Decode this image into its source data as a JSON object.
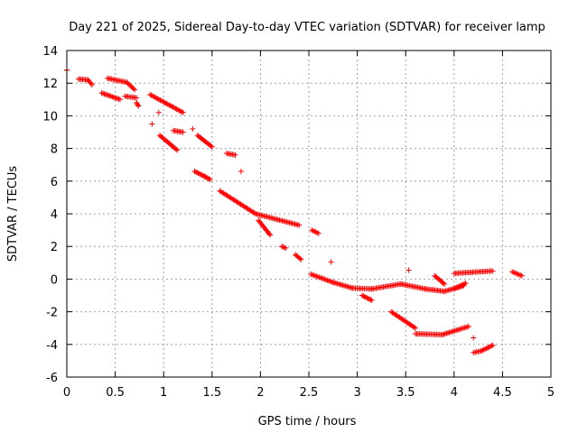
{
  "chart_data": {
    "type": "scatter",
    "title": "Day 221 of 2025, Sidereal Day-to-day VTEC variation (SDTVAR) for receiver lamp",
    "xlabel": "GPS time / hours",
    "ylabel": "SDTVAR / TECUs",
    "xlim": [
      0,
      5
    ],
    "ylim": [
      -6,
      14
    ],
    "xticks": [
      0,
      0.5,
      1,
      1.5,
      2,
      2.5,
      3,
      3.5,
      4,
      4.5,
      5
    ],
    "xtick_labels": [
      "0",
      "0.5",
      "1",
      "1.5",
      "2",
      "2.5",
      "3",
      "3.5",
      "4",
      "4.5",
      "5"
    ],
    "yticks": [
      -6,
      -4,
      -2,
      0,
      2,
      4,
      6,
      8,
      10,
      12,
      14
    ],
    "ytick_labels": [
      "-6",
      "-4",
      "-2",
      "0",
      "2",
      "4",
      "6",
      "8",
      "10",
      "12",
      "14"
    ],
    "grid": true,
    "marker": "plus",
    "color": "#ff0000",
    "segments": [
      {
        "from": [
          0.0,
          12.8
        ],
        "to": [
          0.0,
          12.8
        ]
      },
      {
        "from": [
          0.12,
          12.25
        ],
        "to": [
          0.22,
          12.2
        ]
      },
      {
        "from": [
          0.22,
          12.2
        ],
        "to": [
          0.26,
          11.9
        ]
      },
      {
        "from": [
          0.36,
          11.4
        ],
        "to": [
          0.55,
          11.0
        ]
      },
      {
        "from": [
          0.42,
          12.3
        ],
        "to": [
          0.62,
          12.05
        ]
      },
      {
        "from": [
          0.62,
          12.05
        ],
        "to": [
          0.7,
          11.6
        ]
      },
      {
        "from": [
          0.6,
          11.2
        ],
        "to": [
          0.72,
          11.1
        ]
      },
      {
        "from": [
          0.72,
          10.8
        ],
        "to": [
          0.74,
          10.6
        ]
      },
      {
        "from": [
          0.86,
          11.3
        ],
        "to": [
          1.2,
          10.2
        ]
      },
      {
        "from": [
          1.1,
          9.1
        ],
        "to": [
          1.2,
          9.0
        ]
      },
      {
        "from": [
          0.96,
          8.8
        ],
        "to": [
          1.14,
          7.9
        ]
      },
      {
        "from": [
          1.35,
          8.8
        ],
        "to": [
          1.5,
          8.1
        ]
      },
      {
        "from": [
          1.65,
          7.7
        ],
        "to": [
          1.74,
          7.6
        ]
      },
      {
        "from": [
          1.32,
          6.6
        ],
        "to": [
          1.42,
          6.3
        ]
      },
      {
        "from": [
          1.42,
          6.3
        ],
        "to": [
          1.48,
          6.1
        ]
      },
      {
        "from": [
          1.58,
          5.4
        ],
        "to": [
          1.95,
          4.0
        ]
      },
      {
        "from": [
          1.95,
          4.0
        ],
        "to": [
          2.4,
          3.3
        ]
      },
      {
        "from": [
          1.98,
          3.6
        ],
        "to": [
          2.1,
          2.7
        ]
      },
      {
        "from": [
          2.22,
          2.0
        ],
        "to": [
          2.26,
          1.9
        ]
      },
      {
        "from": [
          2.36,
          1.5
        ],
        "to": [
          2.42,
          1.2
        ]
      },
      {
        "from": [
          2.53,
          3.0
        ],
        "to": [
          2.6,
          2.8
        ]
      },
      {
        "from": [
          2.52,
          0.3
        ],
        "to": [
          2.75,
          -0.2
        ]
      },
      {
        "from": [
          2.75,
          -0.2
        ],
        "to": [
          2.95,
          -0.55
        ]
      },
      {
        "from": [
          2.95,
          -0.55
        ],
        "to": [
          3.15,
          -0.6
        ]
      },
      {
        "from": [
          3.15,
          -0.6
        ],
        "to": [
          3.45,
          -0.3
        ]
      },
      {
        "from": [
          3.45,
          -0.3
        ],
        "to": [
          3.7,
          -0.6
        ]
      },
      {
        "from": [
          3.7,
          -0.6
        ],
        "to": [
          3.9,
          -0.75
        ]
      },
      {
        "from": [
          3.9,
          -0.75
        ],
        "to": [
          4.1,
          -0.4
        ]
      },
      {
        "from": [
          3.8,
          0.2
        ],
        "to": [
          3.9,
          -0.3
        ]
      },
      {
        "from": [
          3.05,
          -1.0
        ],
        "to": [
          3.15,
          -1.3
        ]
      },
      {
        "from": [
          3.35,
          -2.0
        ],
        "to": [
          3.6,
          -3.0
        ]
      },
      {
        "from": [
          3.6,
          -3.35
        ],
        "to": [
          3.88,
          -3.4
        ]
      },
      {
        "from": [
          3.88,
          -3.4
        ],
        "to": [
          4.15,
          -2.9
        ]
      },
      {
        "from": [
          4.0,
          0.35
        ],
        "to": [
          4.4,
          0.5
        ]
      },
      {
        "from": [
          4.6,
          0.45
        ],
        "to": [
          4.7,
          0.2
        ]
      },
      {
        "from": [
          4.2,
          -4.5
        ],
        "to": [
          4.28,
          -4.4
        ]
      },
      {
        "from": [
          4.28,
          -4.4
        ],
        "to": [
          4.4,
          -4.05
        ]
      },
      {
        "from": [
          4.0,
          -0.6
        ],
        "to": [
          4.12,
          -0.25
        ]
      }
    ],
    "isolated_points": [
      [
        0.88,
        9.5
      ],
      [
        0.95,
        10.2
      ],
      [
        1.3,
        9.2
      ],
      [
        1.8,
        6.6
      ],
      [
        2.73,
        1.05
      ],
      [
        3.53,
        0.55
      ],
      [
        4.2,
        -3.6
      ]
    ]
  }
}
